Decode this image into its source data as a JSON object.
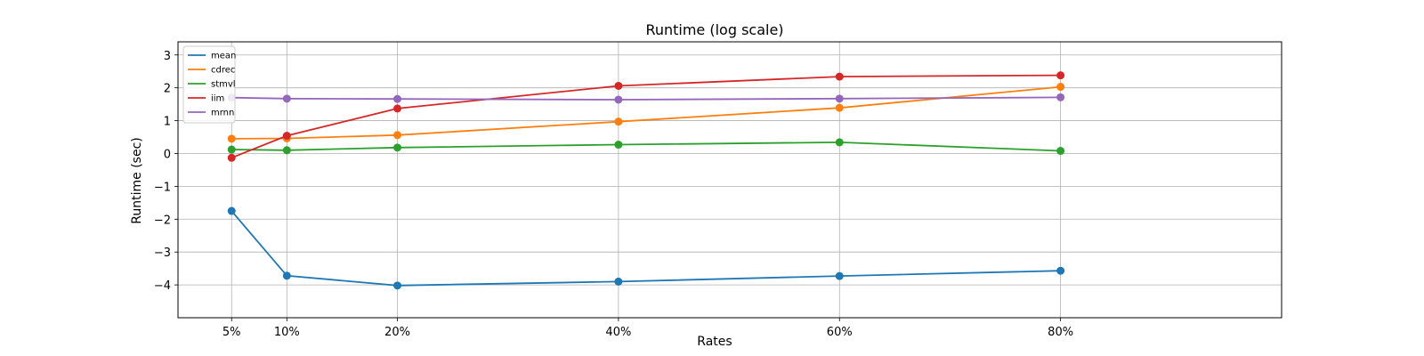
{
  "chart_data": {
    "type": "line",
    "title": "Runtime (log scale)",
    "xlabel": "Rates",
    "ylabel": "Runtime (sec)",
    "x": [
      5,
      10,
      20,
      40,
      60,
      80
    ],
    "x_tick_labels": [
      "5%",
      "10%",
      "20%",
      "40%",
      "60%",
      "80%"
    ],
    "xlim": [
      0.15,
      100
    ],
    "ylim": [
      -5,
      3.4
    ],
    "y_ticks": [
      -4,
      -3,
      -2,
      -1,
      0,
      1,
      2,
      3
    ],
    "y_tick_labels": [
      "−4",
      "−3",
      "−2",
      "−1",
      "0",
      "1",
      "2",
      "3"
    ],
    "grid": true,
    "legend_position": "top-left",
    "series": [
      {
        "name": "mean",
        "color": "#1f77b4",
        "values": [
          -1.75,
          -3.72,
          -4.02,
          -3.9,
          -3.73,
          -3.57
        ]
      },
      {
        "name": "cdrec",
        "color": "#ff7f0e",
        "values": [
          0.45,
          0.46,
          0.56,
          0.97,
          1.39,
          2.03
        ]
      },
      {
        "name": "stmvl",
        "color": "#2ca02c",
        "values": [
          0.12,
          0.1,
          0.18,
          0.27,
          0.34,
          0.08
        ]
      },
      {
        "name": "iim",
        "color": "#d62728",
        "values": [
          -0.13,
          0.54,
          1.37,
          2.06,
          2.34,
          2.38
        ]
      },
      {
        "name": "mrnn",
        "color": "#9467bd",
        "values": [
          1.7,
          1.67,
          1.66,
          1.64,
          1.67,
          1.71
        ]
      }
    ]
  }
}
